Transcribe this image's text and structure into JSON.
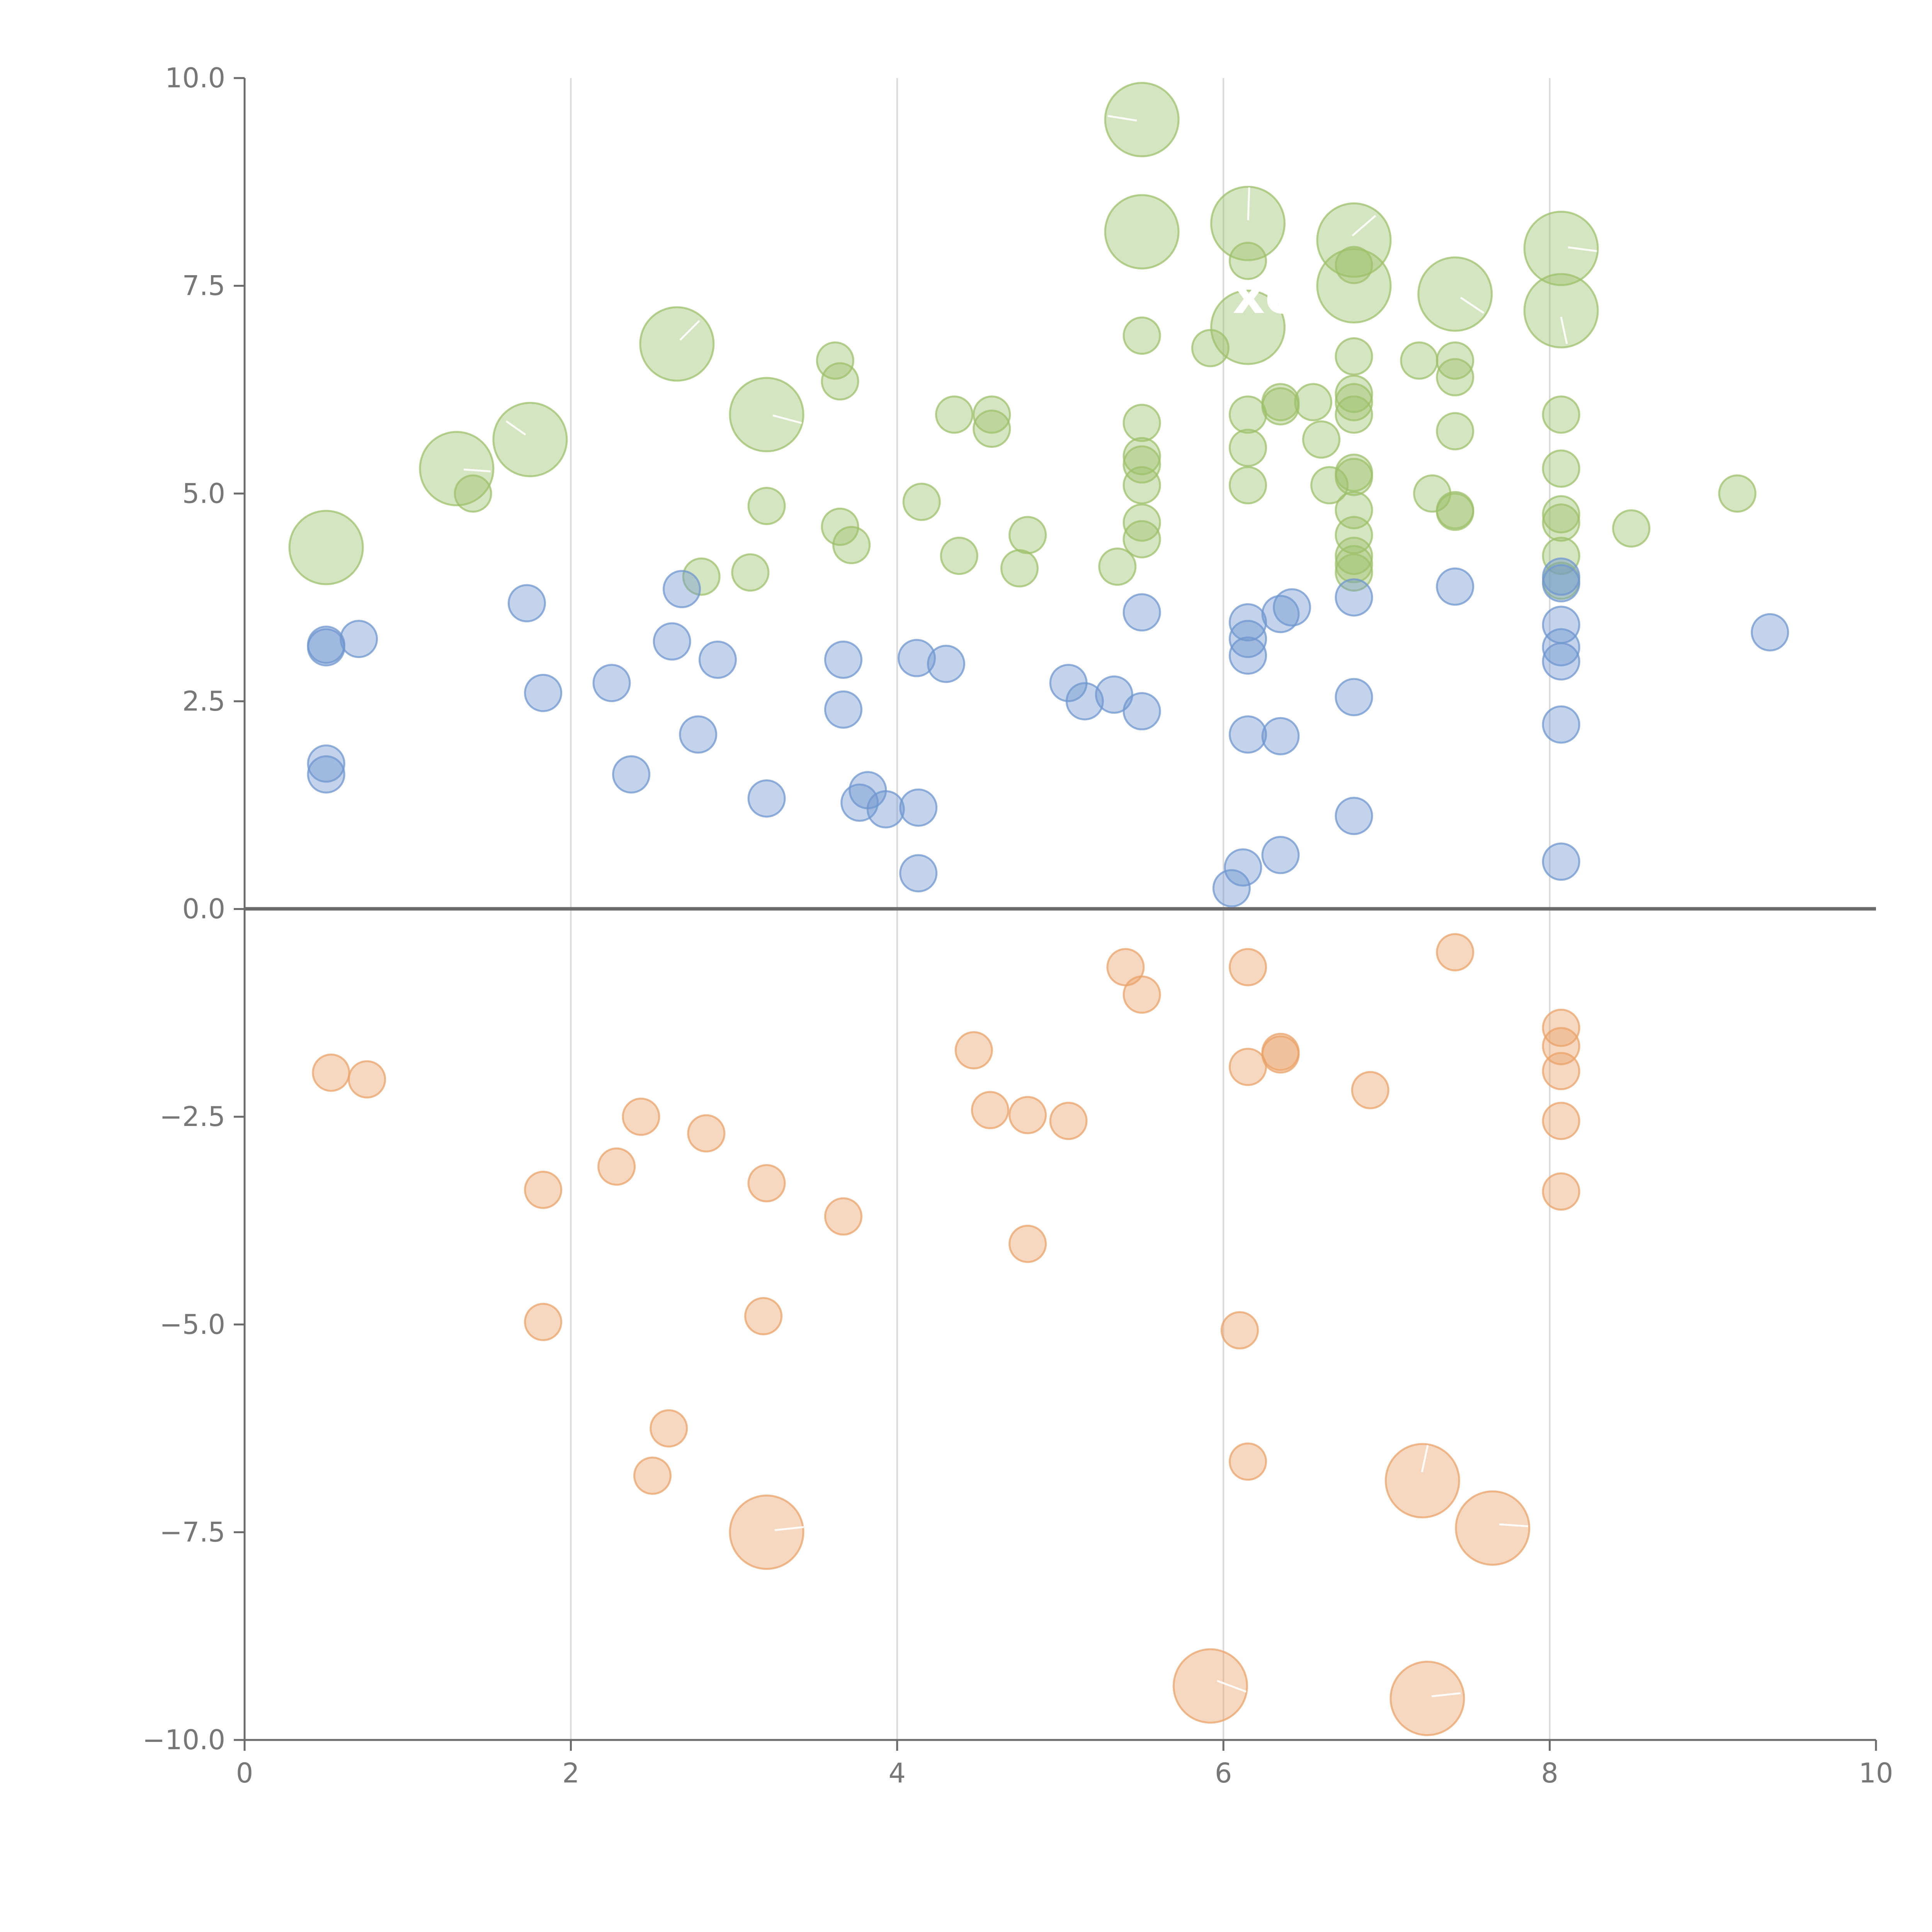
{
  "chart_data": {
    "type": "scatter",
    "title": "",
    "xlabel": "",
    "ylabel": "",
    "xlim": [
      0,
      10
    ],
    "ylim": [
      -10,
      10
    ],
    "x_ticks": [
      "0",
      "2",
      "4",
      "6",
      "8",
      "10"
    ],
    "y_ticks": [
      "10.0",
      "7.5",
      "5.0",
      "2.5",
      "0.0",
      "−2.5",
      "−5.0",
      "−7.5",
      "−10.0"
    ],
    "grid": "vertical",
    "annotation": "xc",
    "series": [
      {
        "name": "green",
        "color": "#9dc06b",
        "points": [
          [
            0.5,
            4.35,
            3
          ],
          [
            1.3,
            5.3,
            3
          ],
          [
            1.4,
            5.0,
            1
          ],
          [
            1.75,
            5.65,
            3
          ],
          [
            2.65,
            6.8,
            3
          ],
          [
            2.8,
            4.0,
            1
          ],
          [
            3.1,
            4.05,
            1
          ],
          [
            3.2,
            5.95,
            3
          ],
          [
            3.2,
            4.85,
            1
          ],
          [
            3.62,
            6.6,
            1
          ],
          [
            3.65,
            6.35,
            1
          ],
          [
            3.65,
            4.6,
            1
          ],
          [
            3.72,
            4.38,
            1
          ],
          [
            4.15,
            4.9,
            1
          ],
          [
            4.35,
            5.95,
            1
          ],
          [
            4.38,
            4.25,
            1
          ],
          [
            4.58,
            5.95,
            1
          ],
          [
            4.58,
            5.78,
            1
          ],
          [
            4.75,
            4.1,
            1
          ],
          [
            4.8,
            4.5,
            1
          ],
          [
            5.35,
            4.12,
            1
          ],
          [
            5.5,
            9.5,
            3
          ],
          [
            5.5,
            8.15,
            3
          ],
          [
            5.5,
            6.9,
            1
          ],
          [
            5.5,
            5.85,
            1
          ],
          [
            5.5,
            5.45,
            1
          ],
          [
            5.5,
            5.35,
            1
          ],
          [
            5.5,
            5.1,
            1
          ],
          [
            5.5,
            4.65,
            1
          ],
          [
            5.5,
            4.45,
            1
          ],
          [
            5.92,
            6.75,
            1
          ],
          [
            6.15,
            8.25,
            3
          ],
          [
            6.15,
            7.0,
            3
          ],
          [
            6.15,
            7.8,
            1
          ],
          [
            6.15,
            5.95,
            1
          ],
          [
            6.15,
            5.55,
            1
          ],
          [
            6.15,
            5.1,
            1
          ],
          [
            6.35,
            6.1,
            1
          ],
          [
            6.35,
            6.05,
            1
          ],
          [
            6.55,
            6.1,
            1
          ],
          [
            6.6,
            5.65,
            1
          ],
          [
            6.65,
            5.1,
            1
          ],
          [
            6.8,
            8.05,
            3
          ],
          [
            6.8,
            7.5,
            3
          ],
          [
            6.8,
            7.75,
            1
          ],
          [
            6.8,
            6.65,
            1
          ],
          [
            6.8,
            6.2,
            1
          ],
          [
            6.8,
            6.1,
            1
          ],
          [
            6.8,
            5.95,
            1
          ],
          [
            6.8,
            5.25,
            1
          ],
          [
            6.8,
            5.2,
            1
          ],
          [
            6.8,
            4.8,
            1
          ],
          [
            6.8,
            4.5,
            1
          ],
          [
            6.8,
            4.25,
            1
          ],
          [
            6.8,
            4.15,
            1
          ],
          [
            6.8,
            4.05,
            1
          ],
          [
            7.2,
            6.6,
            1
          ],
          [
            7.28,
            5.0,
            1
          ],
          [
            7.42,
            7.4,
            3
          ],
          [
            7.42,
            6.6,
            1
          ],
          [
            7.42,
            6.4,
            1
          ],
          [
            7.42,
            5.75,
            1
          ],
          [
            7.42,
            4.8,
            1
          ],
          [
            7.42,
            4.78,
            1
          ],
          [
            8.07,
            7.95,
            3
          ],
          [
            8.07,
            7.2,
            3
          ],
          [
            8.07,
            5.95,
            1
          ],
          [
            8.07,
            5.3,
            1
          ],
          [
            8.07,
            4.75,
            1
          ],
          [
            8.07,
            4.65,
            1
          ],
          [
            8.07,
            4.25,
            1
          ],
          [
            8.07,
            3.95,
            1
          ],
          [
            8.5,
            4.58,
            1
          ],
          [
            9.15,
            5.0,
            1
          ]
        ]
      },
      {
        "name": "blue",
        "color": "#6f97cf",
        "points": [
          [
            0.5,
            3.18,
            1
          ],
          [
            0.5,
            3.15,
            1
          ],
          [
            0.5,
            1.75,
            1
          ],
          [
            0.5,
            1.62,
            1
          ],
          [
            0.7,
            3.25,
            1
          ],
          [
            1.73,
            3.68,
            1
          ],
          [
            1.83,
            2.6,
            1
          ],
          [
            2.25,
            2.72,
            1
          ],
          [
            2.37,
            1.62,
            1
          ],
          [
            2.62,
            3.22,
            1
          ],
          [
            2.68,
            3.85,
            1
          ],
          [
            2.78,
            2.1,
            1
          ],
          [
            2.9,
            3.0,
            1
          ],
          [
            3.2,
            1.33,
            1
          ],
          [
            3.67,
            3.0,
            1
          ],
          [
            3.67,
            2.4,
            1
          ],
          [
            3.77,
            1.28,
            1
          ],
          [
            3.82,
            1.43,
            1
          ],
          [
            3.93,
            1.2,
            1
          ],
          [
            4.12,
            3.02,
            1
          ],
          [
            4.13,
            1.22,
            1
          ],
          [
            4.13,
            0.43,
            1
          ],
          [
            4.3,
            2.95,
            1
          ],
          [
            5.05,
            2.72,
            1
          ],
          [
            5.15,
            2.5,
            1
          ],
          [
            5.33,
            2.58,
            1
          ],
          [
            5.5,
            3.57,
            1
          ],
          [
            5.5,
            2.38,
            1
          ],
          [
            6.05,
            0.25,
            1
          ],
          [
            6.12,
            0.5,
            1
          ],
          [
            6.15,
            3.45,
            1
          ],
          [
            6.15,
            3.25,
            1
          ],
          [
            6.15,
            3.05,
            1
          ],
          [
            6.15,
            2.1,
            1
          ],
          [
            6.35,
            3.55,
            1
          ],
          [
            6.35,
            2.08,
            1
          ],
          [
            6.35,
            0.65,
            1
          ],
          [
            6.42,
            3.63,
            1
          ],
          [
            6.8,
            3.75,
            1
          ],
          [
            6.8,
            2.55,
            1
          ],
          [
            6.8,
            1.12,
            1
          ],
          [
            7.42,
            3.88,
            1
          ],
          [
            8.07,
            4.0,
            1
          ],
          [
            8.07,
            3.92,
            1
          ],
          [
            8.07,
            3.42,
            1
          ],
          [
            8.07,
            3.15,
            1
          ],
          [
            8.07,
            2.98,
            1
          ],
          [
            8.07,
            2.22,
            1
          ],
          [
            8.07,
            0.57,
            1
          ],
          [
            9.35,
            3.33,
            1
          ]
        ]
      },
      {
        "name": "orange",
        "color": "#e9a36a",
        "points": [
          [
            0.53,
            -1.97,
            1
          ],
          [
            0.75,
            -2.05,
            1
          ],
          [
            1.83,
            -3.38,
            1
          ],
          [
            1.83,
            -4.97,
            1
          ],
          [
            2.28,
            -3.1,
            1
          ],
          [
            2.43,
            -2.5,
            1
          ],
          [
            2.5,
            -6.82,
            1
          ],
          [
            2.6,
            -6.25,
            1
          ],
          [
            2.83,
            -2.7,
            1
          ],
          [
            3.2,
            -3.3,
            1
          ],
          [
            3.2,
            -7.5,
            3
          ],
          [
            3.18,
            -4.9,
            1
          ],
          [
            3.67,
            -3.7,
            1
          ],
          [
            4.47,
            -1.7,
            1
          ],
          [
            4.57,
            -2.42,
            1
          ],
          [
            4.8,
            -2.48,
            1
          ],
          [
            4.8,
            -4.03,
            1
          ],
          [
            5.05,
            -2.55,
            1
          ],
          [
            5.4,
            -0.7,
            1
          ],
          [
            5.5,
            -1.03,
            1
          ],
          [
            5.92,
            -9.35,
            3
          ],
          [
            6.1,
            -5.07,
            1
          ],
          [
            6.15,
            -0.7,
            1
          ],
          [
            6.15,
            -1.9,
            1
          ],
          [
            6.15,
            -6.65,
            1
          ],
          [
            6.35,
            -1.75,
            1
          ],
          [
            6.35,
            -1.72,
            1
          ],
          [
            6.9,
            -2.18,
            1
          ],
          [
            7.22,
            -6.88,
            3
          ],
          [
            7.25,
            -9.5,
            3
          ],
          [
            7.42,
            -0.52,
            1
          ],
          [
            7.65,
            -7.45,
            3
          ],
          [
            8.07,
            -1.43,
            1
          ],
          [
            8.07,
            -1.65,
            1
          ],
          [
            8.07,
            -1.95,
            1
          ],
          [
            8.07,
            -2.55,
            1
          ],
          [
            8.07,
            -3.4,
            1
          ]
        ]
      }
    ]
  }
}
